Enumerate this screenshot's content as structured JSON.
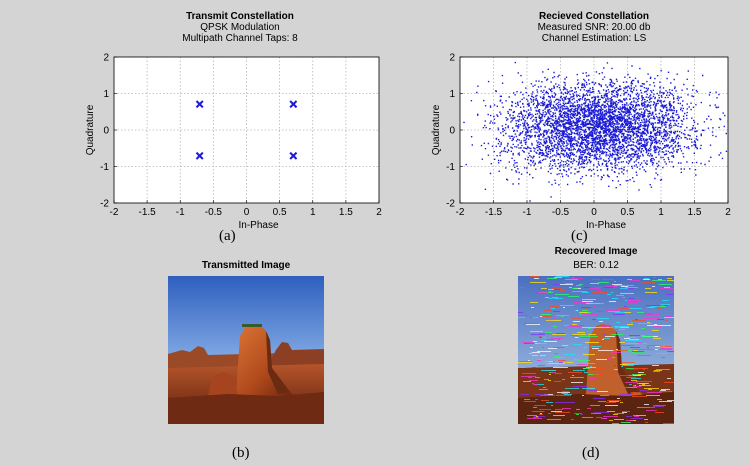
{
  "chart_data": [
    {
      "type": "scatter",
      "title": "Transmit Constellation",
      "subtitle_lines": [
        "QPSK Modulation",
        "Multipath Channel Taps: 8"
      ],
      "xlabel": "In-Phase",
      "ylabel": "Quadrature",
      "xlim": [
        -2,
        2
      ],
      "ylim": [
        -2,
        2
      ],
      "xticks": [
        "-2",
        "-1.5",
        "-1",
        "-0.5",
        "0",
        "0.5",
        "1",
        "1.5",
        "2"
      ],
      "yticks": [
        "2",
        "1",
        "0",
        "-1",
        "-2"
      ],
      "grid": true,
      "marker": "x",
      "color": "#1c1cd6",
      "points": [
        [
          -0.707,
          0.707
        ],
        [
          0.707,
          0.707
        ],
        [
          -0.707,
          -0.707
        ],
        [
          0.707,
          -0.707
        ]
      ],
      "caption": "(a)"
    },
    {
      "type": "scatter",
      "title": "Recieved Constellation",
      "subtitle_lines": [
        "Measured SNR: 20.00 db",
        "Channel Estimation: LS"
      ],
      "xlabel": "In-Phase",
      "ylabel": "Quadrature",
      "xlim": [
        -2,
        2
      ],
      "ylim": [
        -2,
        2
      ],
      "xticks": [
        "-2",
        "-1.5",
        "-1",
        "-0.5",
        "0",
        "0.5",
        "1",
        "1.5",
        "2"
      ],
      "yticks": [
        "2",
        "1",
        "0",
        "-1",
        "-2"
      ],
      "grid": true,
      "marker": ".",
      "color": "#1c1cd6",
      "caption": "(c)"
    }
  ],
  "images": {
    "transmitted": {
      "title": "Transmitted Image",
      "caption": "(b)"
    },
    "recovered": {
      "title": "Recovered Image",
      "subtitle": "BER: 0.12",
      "caption": "(d)"
    }
  }
}
